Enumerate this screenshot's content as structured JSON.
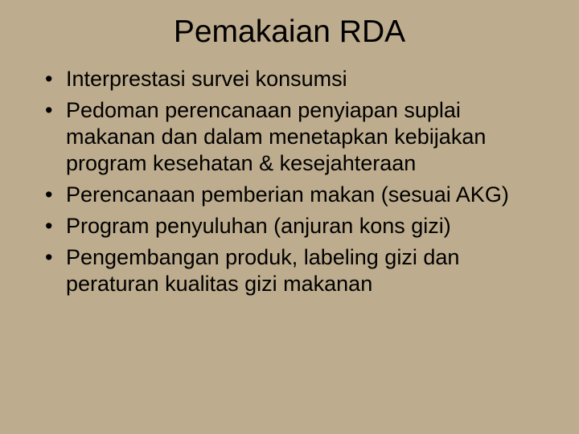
{
  "slide": {
    "title": "Pemakaian RDA",
    "bullets": [
      "Interprestasi survei konsumsi",
      "Pedoman perencanaan penyiapan suplai makanan dan dalam menetapkan kebijakan program kesehatan & kesejahteraan",
      "Perencanaan pemberian makan (sesuai AKG)",
      "Program penyuluhan (anjuran kons gizi)",
      "Pengembangan produk, labeling gizi dan peraturan kualitas gizi makanan"
    ]
  },
  "style": {
    "background_color": "#bdac8d",
    "text_color": "#000000",
    "title_fontsize": 39,
    "body_fontsize": 27,
    "font_family": "Arial"
  }
}
